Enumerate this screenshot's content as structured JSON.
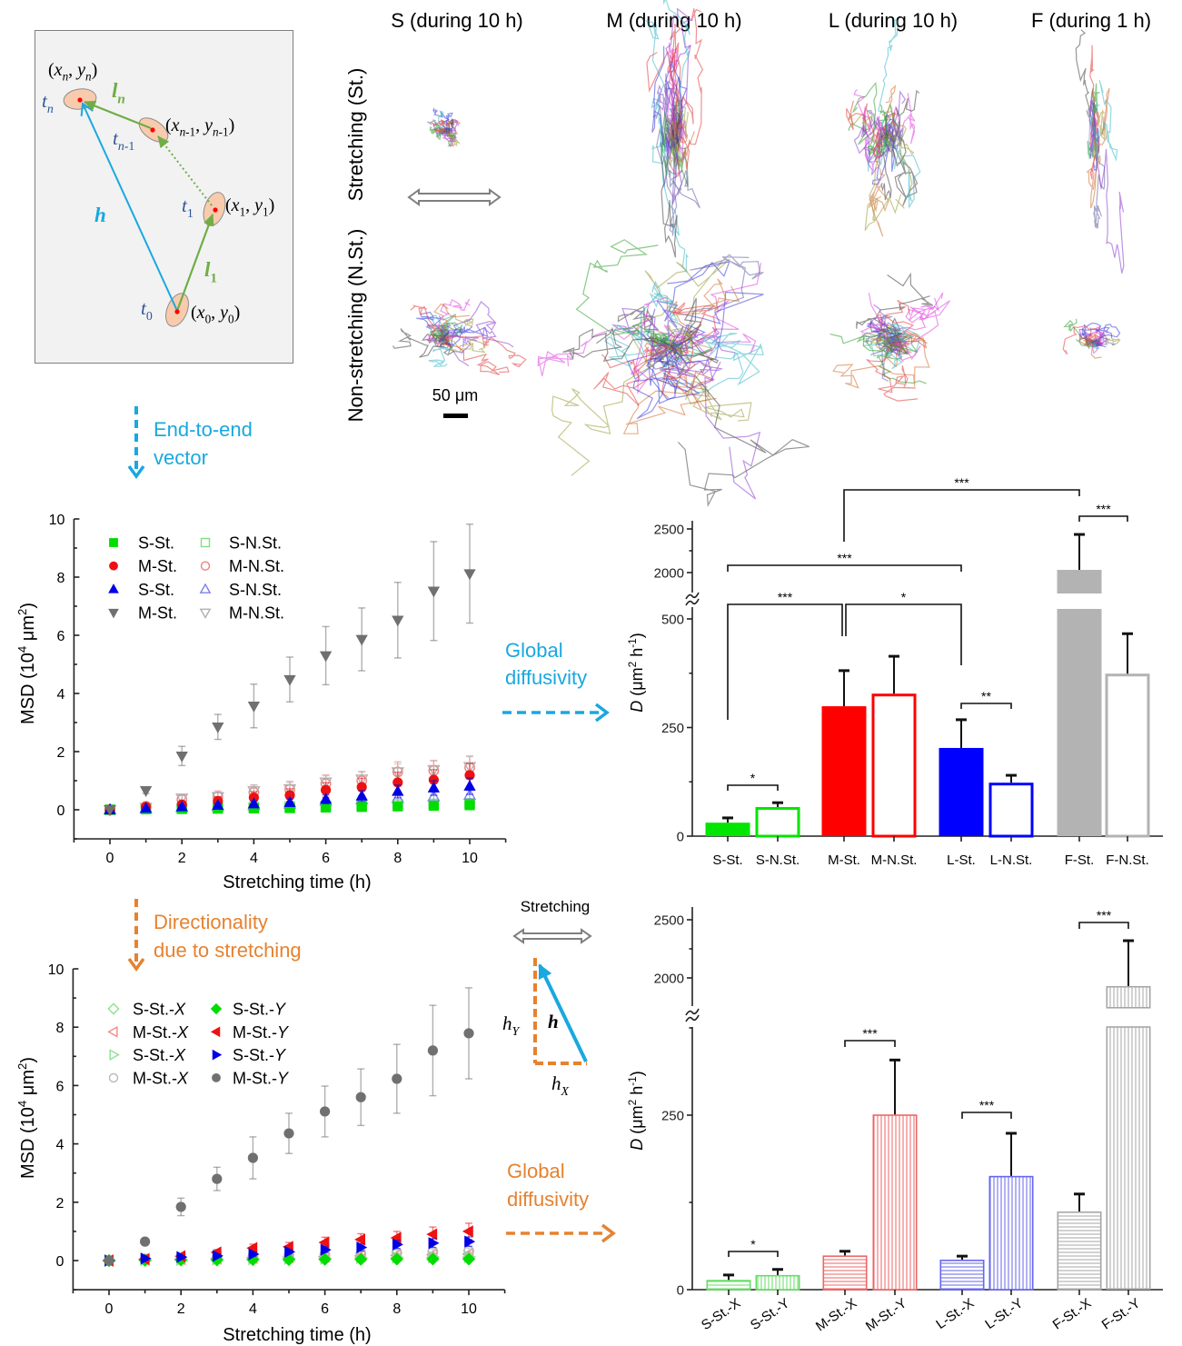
{
  "figure": {
    "columns": [
      "S (during 10 h)",
      "M (during 10 h)",
      "L (during 10 h)",
      "F (during 1 h)"
    ],
    "rows": [
      "Stretching (St.)",
      "Non-stretching (N.St.)"
    ],
    "scale_bar_label": "50 μm",
    "schematic": {
      "point_n": "(*x*_{*n*}, *y*_{*n*})",
      "point_n1": "(*x*_{*n*-1}, *y*_{*n*-1})",
      "point_1": "(*x*_{1}, *y*_{1})",
      "point_0": "(*x*_{0}, *y*_{0})",
      "time_n": "*t*_{*n*}",
      "time_n1": "*t*_{*n*-1}",
      "time_1": "*t*_{1}",
      "time_0": "*t*_{0}",
      "step_n": "*l*_{*n*}",
      "step_1": "*l*_{1}",
      "end_to_end": "*h*"
    },
    "flow": {
      "end_to_end_vector": [
        "End-to-end",
        "vector"
      ],
      "directionality": [
        "Directionality",
        "due to stretching"
      ],
      "global_diffusivity_top": [
        "Global",
        "diffusivity"
      ],
      "global_diffusivity_bottom": [
        "Global",
        "diffusivity"
      ]
    },
    "inset": {
      "title": "Stretching",
      "h": "*h*",
      "hY": "*h*_{*Y*}",
      "hX": "*h*_{*X*}"
    },
    "colors": {
      "cyan": "#19a8e0",
      "orange": "#e6822f",
      "step_green": "#70ad47",
      "time_blue": "#2f5597"
    }
  },
  "chart_data": [
    {
      "type": "scatter",
      "title": "",
      "xlabel": "Stretching time (h)",
      "ylabel": "MSD (10^{4} μm^{2})",
      "xlim": [
        -1,
        11
      ],
      "ylim": [
        -1,
        10
      ],
      "xticks": [
        0,
        2,
        4,
        6,
        8,
        10
      ],
      "yticks": [
        0,
        2,
        4,
        6,
        8,
        10
      ],
      "grid": false,
      "legend_position": "top-left",
      "x": [
        0,
        1,
        2,
        3,
        4,
        5,
        6,
        7,
        8,
        9,
        10
      ],
      "series": [
        {
          "name": "S-St.",
          "marker": "square",
          "filled": true,
          "color": "#00dd00",
          "values": [
            0,
            0.02,
            0.03,
            0.04,
            0.05,
            0.06,
            0.08,
            0.1,
            0.12,
            0.14,
            0.16
          ],
          "errors": [
            0,
            0.02,
            0.02,
            0.03,
            0.03,
            0.04,
            0.05,
            0.05,
            0.06,
            0.07,
            0.08
          ]
        },
        {
          "name": "M-St.",
          "marker": "circle",
          "filled": true,
          "color": "#ee1111",
          "values": [
            0,
            0.1,
            0.18,
            0.3,
            0.42,
            0.5,
            0.68,
            0.78,
            0.94,
            1.03,
            1.19
          ],
          "errors": [
            0,
            0.05,
            0.1,
            0.15,
            0.2,
            0.22,
            0.25,
            0.3,
            0.35,
            0.35,
            0.4
          ]
        },
        {
          "name": "S-St.",
          "marker": "triangle-up",
          "filled": true,
          "color": "#0000e6",
          "values": [
            0,
            0.05,
            0.1,
            0.15,
            0.2,
            0.25,
            0.36,
            0.47,
            0.63,
            0.75,
            0.81
          ],
          "errors": [
            0,
            0.03,
            0.05,
            0.07,
            0.1,
            0.12,
            0.15,
            0.18,
            0.22,
            0.25,
            0.28
          ]
        },
        {
          "name": "M-St.",
          "marker": "triangle-down",
          "filled": true,
          "color": "#707070",
          "values": [
            0,
            0.66,
            1.85,
            2.85,
            3.57,
            4.48,
            5.3,
            5.86,
            6.52,
            7.52,
            8.12
          ],
          "errors": [
            0,
            0.1,
            0.33,
            0.43,
            0.75,
            0.77,
            1.0,
            1.08,
            1.3,
            1.7,
            1.7
          ]
        },
        {
          "name": "S-N.St.",
          "marker": "square",
          "filled": false,
          "color": "#7fe07f",
          "values": [
            0,
            0.03,
            0.05,
            0.07,
            0.09,
            0.11,
            0.13,
            0.15,
            0.18,
            0.2,
            0.22
          ],
          "errors": [
            0,
            0.02,
            0.03,
            0.03,
            0.04,
            0.05,
            0.05,
            0.06,
            0.07,
            0.08,
            0.08
          ]
        },
        {
          "name": "M-N.St.",
          "marker": "circle",
          "filled": false,
          "color": "#f08080",
          "values": [
            0,
            0.12,
            0.35,
            0.45,
            0.6,
            0.7,
            0.9,
            1.0,
            1.3,
            1.35,
            1.45
          ],
          "errors": [
            0,
            0.06,
            0.15,
            0.2,
            0.25,
            0.28,
            0.3,
            0.32,
            0.35,
            0.35,
            0.4
          ]
        },
        {
          "name": "S-N.St.",
          "marker": "triangle-up",
          "filled": false,
          "color": "#8080f0",
          "values": [
            0,
            0.04,
            0.08,
            0.12,
            0.15,
            0.2,
            0.3,
            0.35,
            0.4,
            0.45,
            0.5
          ],
          "errors": [
            0,
            0.02,
            0.04,
            0.05,
            0.06,
            0.08,
            0.1,
            0.12,
            0.14,
            0.15,
            0.16
          ]
        },
        {
          "name": "M-N.St.",
          "marker": "triangle-down",
          "filled": false,
          "color": "#b0b0b0",
          "values": [
            0,
            0.08,
            0.4,
            0.45,
            0.65,
            0.72,
            0.95,
            1.05,
            1.3,
            1.38,
            1.48
          ],
          "errors": [
            0,
            0.06,
            0.12,
            0.15,
            0.2,
            0.22,
            0.22,
            0.25,
            0.28,
            0.3,
            0.35
          ]
        }
      ]
    },
    {
      "type": "bar",
      "title": "",
      "xlabel": "",
      "ylabel": "*D* (μm^{2} h^{-1})",
      "categories": [
        "S-St.",
        "S-N.St.",
        "M-St.",
        "M-N.St.",
        "L-St.",
        "L-N.St.",
        "F-St.",
        "F-N.St."
      ],
      "values": [
        31,
        67,
        299,
        328,
        203,
        123,
        2031,
        374
      ],
      "errors": [
        11,
        10,
        82,
        86,
        65,
        17,
        406,
        92
      ],
      "colors": [
        "#00e600",
        "#00e600",
        "#ff0000",
        "#ff0000",
        "#0000ff",
        "#0000ff",
        "#b3b3b3",
        "#b3b3b3"
      ],
      "fills": [
        "solid",
        "outline",
        "solid",
        "outline",
        "solid",
        "outline",
        "solid",
        "outline"
      ],
      "ylim": [
        0,
        2600
      ],
      "y_break": [
        530,
        1800
      ],
      "yticks": [
        0,
        250,
        500,
        2000,
        2500
      ],
      "significance": [
        {
          "pair": [
            0,
            1
          ],
          "label": "*"
        },
        {
          "pair": [
            0,
            2
          ],
          "label": "***"
        },
        {
          "pair": [
            2,
            4
          ],
          "label": "*"
        },
        {
          "pair": [
            0,
            4
          ],
          "label": "***"
        },
        {
          "pair": [
            2,
            6
          ],
          "label": "***"
        },
        {
          "pair": [
            6,
            7
          ],
          "label": "***"
        },
        {
          "pair": [
            4,
            5
          ],
          "label": "**"
        }
      ]
    },
    {
      "type": "scatter",
      "title": "",
      "xlabel": "Stretching time (h)",
      "ylabel": "MSD (10^{4} μm^{2})",
      "xlim": [
        -1,
        11
      ],
      "ylim": [
        -1,
        10
      ],
      "xticks": [
        0,
        2,
        4,
        6,
        8,
        10
      ],
      "yticks": [
        0,
        2,
        4,
        6,
        8,
        10
      ],
      "grid": false,
      "legend_position": "top-left",
      "x": [
        0,
        1,
        2,
        3,
        4,
        5,
        6,
        7,
        8,
        9,
        10
      ],
      "series": [
        {
          "name": "S-St.-*X*",
          "marker": "diamond",
          "filled": false,
          "color": "#8fe08f",
          "values": [
            0,
            0.02,
            0.03,
            0.04,
            0.05,
            0.06,
            0.07,
            0.08,
            0.09,
            0.1,
            0.11
          ],
          "errors": [
            0,
            0.01,
            0.02,
            0.02,
            0.02,
            0.03,
            0.03,
            0.03,
            0.04,
            0.04,
            0.04
          ]
        },
        {
          "name": "M-St.-*X*",
          "marker": "triangle-left",
          "filled": false,
          "color": "#f08a8a",
          "values": [
            0,
            0.04,
            0.06,
            0.08,
            0.1,
            0.12,
            0.14,
            0.16,
            0.18,
            0.2,
            0.22
          ],
          "errors": [
            0,
            0.02,
            0.03,
            0.03,
            0.04,
            0.04,
            0.05,
            0.05,
            0.06,
            0.06,
            0.07
          ]
        },
        {
          "name": "S-St.-*X*",
          "marker": "triangle-right",
          "filled": false,
          "color": "#8fe08f",
          "values": [
            0,
            0.03,
            0.04,
            0.05,
            0.06,
            0.07,
            0.08,
            0.1,
            0.11,
            0.12,
            0.13
          ],
          "errors": [
            0,
            0.01,
            0.02,
            0.02,
            0.02,
            0.03,
            0.03,
            0.03,
            0.04,
            0.04,
            0.04
          ]
        },
        {
          "name": "M-St.-*X*",
          "marker": "circle",
          "filled": false,
          "color": "#b8b8b8",
          "values": [
            0,
            0.05,
            0.08,
            0.1,
            0.13,
            0.16,
            0.2,
            0.23,
            0.27,
            0.3,
            0.33
          ],
          "errors": [
            0,
            0.02,
            0.03,
            0.04,
            0.05,
            0.06,
            0.07,
            0.08,
            0.09,
            0.1,
            0.1
          ]
        },
        {
          "name": "S-St.-*Y*",
          "marker": "diamond",
          "filled": true,
          "color": "#00dd00",
          "values": [
            0,
            0.01,
            0.02,
            0.02,
            0.03,
            0.03,
            0.04,
            0.04,
            0.05,
            0.05,
            0.05
          ],
          "errors": [
            0,
            0.01,
            0.01,
            0.01,
            0.01,
            0.02,
            0.02,
            0.02,
            0.02,
            0.02,
            0.02
          ]
        },
        {
          "name": "M-St.-*Y*",
          "marker": "triangle-left",
          "filled": true,
          "color": "#ee1111",
          "values": [
            0,
            0.05,
            0.15,
            0.28,
            0.43,
            0.47,
            0.62,
            0.72,
            0.78,
            0.9,
            1.0
          ],
          "errors": [
            0,
            0.03,
            0.08,
            0.1,
            0.13,
            0.15,
            0.18,
            0.2,
            0.22,
            0.25,
            0.28
          ]
        },
        {
          "name": "S-St.-*Y*",
          "marker": "triangle-right",
          "filled": true,
          "color": "#0000e6",
          "values": [
            0,
            0.07,
            0.12,
            0.16,
            0.22,
            0.3,
            0.37,
            0.45,
            0.55,
            0.6,
            0.65
          ],
          "errors": [
            0,
            0.03,
            0.04,
            0.05,
            0.07,
            0.08,
            0.1,
            0.12,
            0.14,
            0.15,
            0.16
          ]
        },
        {
          "name": "M-St.-*Y*",
          "marker": "circle",
          "filled": true,
          "color": "#707070",
          "values": [
            0,
            0.65,
            1.84,
            2.8,
            3.52,
            4.36,
            5.11,
            5.6,
            6.23,
            7.2,
            7.79
          ],
          "errors": [
            0,
            0.06,
            0.3,
            0.4,
            0.72,
            0.69,
            0.87,
            0.97,
            1.18,
            1.55,
            1.56
          ]
        }
      ]
    },
    {
      "type": "bar",
      "title": "",
      "xlabel": "",
      "ylabel": "*D* (μm^{2} h^{-1})",
      "categories": [
        "S-St.-X",
        "S-St.-Y",
        "M-St.-X",
        "M-St.-Y",
        "L-St.-X",
        "L-St.-Y",
        "F-St.-X",
        "F-St.-Y"
      ],
      "values": [
        14,
        21,
        49,
        251,
        43,
        163,
        112,
        1930
      ],
      "errors": [
        7,
        8,
        6,
        78,
        5,
        61,
        25,
        390
      ],
      "colors": [
        "#66dd66",
        "#66dd66",
        "#ee6666",
        "#ee6666",
        "#6666ee",
        "#6666ee",
        "#a6a6a6",
        "#a6a6a6"
      ],
      "fills": [
        "hatch-h",
        "hatch-v",
        "hatch-h",
        "hatch-v",
        "hatch-h",
        "hatch-v",
        "hatch-h",
        "hatch-v"
      ],
      "ylim": [
        0,
        2600
      ],
      "y_break": [
        376,
        1750
      ],
      "yticks": [
        0,
        250,
        2000,
        2500
      ],
      "significance": [
        {
          "pair": [
            0,
            1
          ],
          "label": "*"
        },
        {
          "pair": [
            2,
            3
          ],
          "label": "***"
        },
        {
          "pair": [
            4,
            5
          ],
          "label": "***"
        },
        {
          "pair": [
            6,
            7
          ],
          "label": "***"
        }
      ]
    }
  ]
}
